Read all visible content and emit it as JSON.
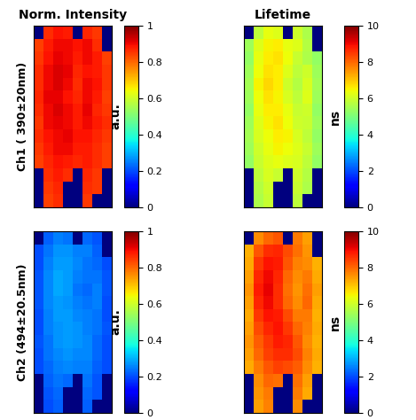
{
  "chart_data": [
    {
      "type": "heatmap",
      "title": "Norm. Intensity",
      "ylabel": "Ch1 ( 390±20nm)",
      "tick_labels": false,
      "colorbar": {
        "range": [
          0,
          1
        ],
        "ticks": [
          0,
          0.2,
          0.4,
          0.6,
          0.8,
          1
        ],
        "label": "a.u."
      },
      "cells": [
        [
          0,
          0.86,
          0.89,
          0.88,
          0,
          0.87,
          0.85,
          0
        ],
        [
          0.84,
          0.88,
          0.9,
          0.9,
          0.89,
          0.9,
          0.86,
          0
        ],
        [
          0.85,
          0.89,
          0.91,
          0.9,
          0.88,
          0.9,
          0.88,
          0.84
        ],
        [
          0.86,
          0.9,
          0.92,
          0.91,
          0.87,
          0.89,
          0.88,
          0.85
        ],
        [
          0.86,
          0.9,
          0.92,
          0.9,
          0.86,
          0.9,
          0.89,
          0.85
        ],
        [
          0.87,
          0.91,
          0.91,
          0.89,
          0.87,
          0.9,
          0.88,
          0.84
        ],
        [
          0.86,
          0.9,
          0.92,
          0.9,
          0.88,
          0.91,
          0.87,
          0.85
        ],
        [
          0.85,
          0.9,
          0.91,
          0.9,
          0.88,
          0.9,
          0.88,
          0.86
        ],
        [
          0.86,
          0.89,
          0.9,
          0.91,
          0.89,
          0.89,
          0.87,
          0.85
        ],
        [
          0.85,
          0.88,
          0.9,
          0.9,
          0.88,
          0.88,
          0.86,
          0.84
        ],
        [
          0.84,
          0.87,
          0.89,
          0.88,
          0.87,
          0.88,
          0.86,
          0.84
        ],
        [
          0,
          0.86,
          0.88,
          0.86,
          0,
          0.87,
          0.85,
          0
        ],
        [
          0,
          0.85,
          0.87,
          0,
          0,
          0.86,
          0.85,
          0
        ],
        [
          0,
          0.84,
          0.86,
          0,
          0,
          0.85,
          0,
          0
        ]
      ]
    },
    {
      "type": "heatmap",
      "title": "Lifetime",
      "tick_labels": false,
      "colorbar": {
        "range": [
          0,
          10
        ],
        "ticks": [
          0,
          2,
          4,
          6,
          8,
          10
        ],
        "label": "ns"
      },
      "cells": [
        [
          0,
          5.8,
          6.3,
          6.2,
          0,
          6.0,
          5.6,
          0
        ],
        [
          5.4,
          6.2,
          6.5,
          6.6,
          6.3,
          6.2,
          5.7,
          0
        ],
        [
          5.3,
          6.3,
          6.6,
          6.7,
          6.4,
          5.9,
          5.6,
          5.3
        ],
        [
          5.4,
          6.4,
          6.7,
          6.6,
          6.2,
          5.8,
          6.0,
          5.4
        ],
        [
          5.5,
          6.5,
          6.8,
          6.6,
          6.0,
          5.7,
          6.1,
          5.5
        ],
        [
          5.4,
          6.4,
          6.7,
          6.5,
          6.1,
          5.8,
          6.2,
          5.4
        ],
        [
          5.3,
          6.3,
          6.6,
          6.6,
          6.3,
          5.9,
          6.0,
          5.3
        ],
        [
          5.4,
          6.2,
          6.5,
          6.7,
          6.4,
          6.0,
          5.9,
          5.4
        ],
        [
          5.5,
          6.1,
          6.4,
          6.6,
          6.5,
          6.1,
          5.8,
          5.3
        ],
        [
          5.4,
          6.0,
          6.3,
          6.5,
          6.4,
          6.2,
          5.9,
          5.4
        ],
        [
          5.3,
          5.9,
          6.2,
          6.3,
          6.2,
          6.1,
          5.8,
          5.3
        ],
        [
          0,
          5.8,
          6.1,
          5.9,
          0,
          6.0,
          5.7,
          0
        ],
        [
          0,
          5.7,
          6.0,
          0,
          0,
          5.9,
          5.6,
          0
        ],
        [
          0,
          5.6,
          5.9,
          0,
          0,
          5.8,
          0,
          0
        ]
      ]
    },
    {
      "type": "heatmap",
      "ylabel": "Ch2 (494±20.5nm)",
      "tick_labels": false,
      "colorbar": {
        "range": [
          0,
          1
        ],
        "ticks": [
          0,
          0.2,
          0.4,
          0.6,
          0.8,
          1
        ],
        "label": "a.u."
      },
      "cells": [
        [
          0,
          0.22,
          0.25,
          0.24,
          0,
          0.23,
          0.21,
          0
        ],
        [
          0.2,
          0.24,
          0.27,
          0.27,
          0.25,
          0.25,
          0.22,
          0
        ],
        [
          0.2,
          0.25,
          0.28,
          0.28,
          0.26,
          0.24,
          0.23,
          0.2
        ],
        [
          0.21,
          0.26,
          0.29,
          0.28,
          0.25,
          0.24,
          0.24,
          0.21
        ],
        [
          0.21,
          0.26,
          0.29,
          0.28,
          0.24,
          0.23,
          0.25,
          0.21
        ],
        [
          0.21,
          0.26,
          0.28,
          0.27,
          0.25,
          0.24,
          0.25,
          0.2
        ],
        [
          0.2,
          0.25,
          0.28,
          0.28,
          0.26,
          0.25,
          0.24,
          0.2
        ],
        [
          0.2,
          0.25,
          0.27,
          0.28,
          0.27,
          0.25,
          0.24,
          0.21
        ],
        [
          0.21,
          0.24,
          0.27,
          0.28,
          0.27,
          0.26,
          0.23,
          0.2
        ],
        [
          0.2,
          0.24,
          0.26,
          0.27,
          0.26,
          0.26,
          0.23,
          0.2
        ],
        [
          0.2,
          0.23,
          0.25,
          0.26,
          0.25,
          0.25,
          0.22,
          0.2
        ],
        [
          0,
          0.22,
          0.24,
          0.23,
          0,
          0.24,
          0.21,
          0
        ],
        [
          0,
          0.21,
          0.23,
          0,
          0,
          0.23,
          0.21,
          0
        ],
        [
          0,
          0.2,
          0.22,
          0,
          0,
          0.22,
          0,
          0
        ]
      ]
    },
    {
      "type": "heatmap",
      "tick_labels": false,
      "colorbar": {
        "range": [
          0,
          10
        ],
        "ticks": [
          0,
          2,
          4,
          6,
          8,
          10
        ],
        "label": "ns"
      },
      "cells": [
        [
          0,
          7.6,
          8.0,
          8.2,
          0,
          7.8,
          7.4,
          0
        ],
        [
          7.2,
          8.2,
          8.6,
          8.7,
          8.3,
          7.9,
          7.5,
          0
        ],
        [
          7.3,
          8.5,
          8.9,
          8.8,
          8.2,
          7.7,
          7.6,
          7.2
        ],
        [
          7.4,
          8.7,
          9.0,
          8.7,
          8.0,
          7.6,
          7.8,
          7.3
        ],
        [
          7.5,
          8.8,
          9.1,
          8.6,
          7.9,
          7.5,
          7.9,
          7.4
        ],
        [
          7.4,
          8.7,
          9.0,
          8.6,
          8.0,
          7.6,
          8.0,
          7.3
        ],
        [
          7.3,
          8.5,
          8.9,
          8.8,
          8.3,
          7.8,
          7.8,
          7.2
        ],
        [
          7.4,
          8.3,
          8.7,
          8.9,
          8.5,
          8.0,
          7.7,
          7.3
        ],
        [
          7.5,
          8.1,
          8.5,
          8.8,
          8.7,
          8.2,
          7.6,
          7.2
        ],
        [
          7.4,
          8.0,
          8.4,
          8.6,
          8.6,
          8.3,
          7.7,
          7.3
        ],
        [
          7.3,
          7.8,
          8.2,
          8.4,
          8.3,
          8.1,
          7.6,
          7.2
        ],
        [
          0,
          7.6,
          8.0,
          7.9,
          0,
          7.9,
          7.4,
          0
        ],
        [
          0,
          7.5,
          7.8,
          0,
          0,
          7.8,
          7.3,
          0
        ],
        [
          0,
          7.4,
          7.7,
          0,
          0,
          7.6,
          0,
          0
        ]
      ]
    }
  ]
}
